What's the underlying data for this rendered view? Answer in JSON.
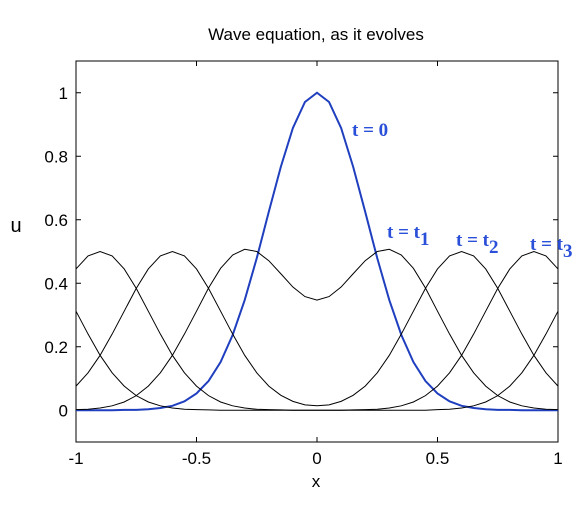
{
  "chart_data": {
    "type": "line",
    "title": "Wave equation, as it evolves",
    "x_label": "x",
    "y_label": "u",
    "x": [
      -1,
      -0.95,
      -0.9,
      -0.85,
      -0.8,
      -0.75,
      -0.7,
      -0.65,
      -0.6,
      -0.55,
      -0.5,
      -0.45,
      -0.4,
      -0.35,
      -0.3,
      -0.25,
      -0.2,
      -0.15,
      -0.1,
      -0.05,
      0,
      0.05,
      0.1,
      0.15,
      0.2,
      0.25,
      0.3,
      0.35,
      0.4,
      0.45,
      0.5,
      0.55,
      0.6,
      0.65,
      0.7,
      0.75,
      0.8,
      0.85,
      0.9,
      0.95,
      1
    ],
    "series": [
      {
        "color": "#1f3fbf",
        "values": [
          0,
          0,
          0,
          0,
          0.001,
          0.001,
          0.003,
          0.007,
          0.014,
          0.028,
          0.053,
          0.092,
          0.152,
          0.237,
          0.347,
          0.479,
          0.625,
          0.767,
          0.889,
          0.971,
          1,
          0.971,
          0.889,
          0.767,
          0.625,
          0.479,
          0.347,
          0.237,
          0.152,
          0.092,
          0.053,
          0.028,
          0.014,
          0.007,
          0.003,
          0.001,
          0.001,
          0,
          0,
          0,
          0
        ]
      },
      {
        "color": "#000000",
        "values": [
          0.002,
          0.003,
          0.007,
          0.014,
          0.026,
          0.046,
          0.076,
          0.118,
          0.173,
          0.24,
          0.312,
          0.385,
          0.447,
          0.489,
          0.507,
          0.5,
          0.471,
          0.43,
          0.388,
          0.358,
          0.347,
          0.358,
          0.388,
          0.43,
          0.471,
          0.5,
          0.507,
          0.489,
          0.447,
          0.385,
          0.312,
          0.24,
          0.173,
          0.118,
          0.076,
          0.046,
          0.026,
          0.014,
          0.007,
          0.003,
          0.002
        ]
      },
      {
        "color": "#000000",
        "values": [
          0.076,
          0.118,
          0.173,
          0.24,
          0.312,
          0.384,
          0.445,
          0.486,
          0.5,
          0.486,
          0.445,
          0.384,
          0.312,
          0.24,
          0.173,
          0.118,
          0.076,
          0.047,
          0.028,
          0.017,
          0.014,
          0.017,
          0.028,
          0.047,
          0.076,
          0.118,
          0.173,
          0.24,
          0.312,
          0.384,
          0.445,
          0.486,
          0.5,
          0.486,
          0.445,
          0.384,
          0.312,
          0.24,
          0.173,
          0.118,
          0.076
        ]
      },
      {
        "color": "#000000",
        "values": [
          0.445,
          0.486,
          0.5,
          0.486,
          0.445,
          0.384,
          0.312,
          0.24,
          0.173,
          0.118,
          0.076,
          0.046,
          0.026,
          0.014,
          0.007,
          0.003,
          0.002,
          0.001,
          0,
          0,
          0,
          0,
          0,
          0.001,
          0.002,
          0.003,
          0.007,
          0.014,
          0.026,
          0.046,
          0.076,
          0.118,
          0.173,
          0.24,
          0.312,
          0.384,
          0.445,
          0.486,
          0.5,
          0.486,
          0.445
        ]
      },
      {
        "color": "#000000",
        "values": [
          0.312,
          0.24,
          0.173,
          0.118,
          0.076,
          0.046,
          0.026,
          0.014,
          0.007,
          0.003,
          0.002,
          0.001,
          0,
          0,
          0,
          0,
          0,
          0,
          0,
          0,
          0,
          0,
          0,
          0,
          0,
          0,
          0,
          0,
          0,
          0,
          0.002,
          0.003,
          0.007,
          0.014,
          0.026,
          0.046,
          0.076,
          0.118,
          0.173,
          0.24,
          0.312
        ]
      }
    ],
    "annotations": [
      {
        "text": "t = 0"
      },
      {
        "text": "t = t",
        "sub": "1"
      },
      {
        "text": "t = t",
        "sub": "2"
      },
      {
        "text": "t = t",
        "sub": "3"
      }
    ],
    "annotation_color": "#2a4fd8",
    "xlim": [
      -1,
      1
    ],
    "xticks": [
      -1,
      -0.5,
      0,
      0.5,
      1
    ],
    "ylim": [
      -0.1,
      1.1
    ],
    "yticks": [
      0,
      0.2,
      0.4,
      0.6,
      0.8,
      1
    ]
  }
}
